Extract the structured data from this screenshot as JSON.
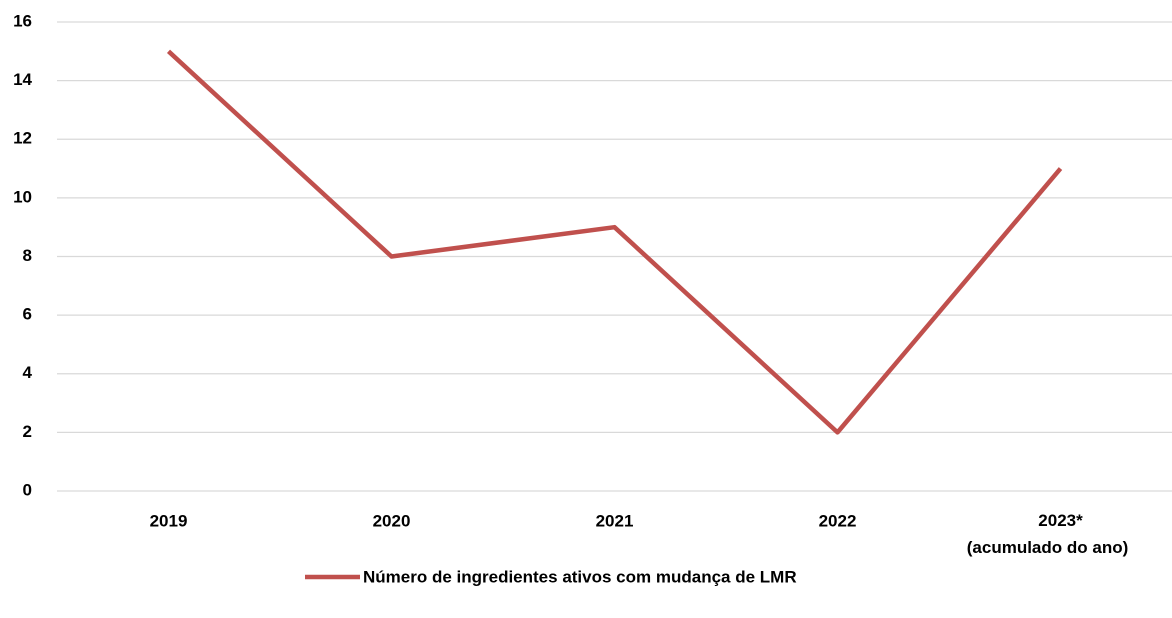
{
  "chart_data": {
    "type": "line",
    "categories": [
      "2019",
      "2020",
      "2021",
      "2022",
      "2023*\n(acumulado do ano)"
    ],
    "series": [
      {
        "name": "Número de ingredientes ativos com mudança de LMR",
        "color": "#c0504d",
        "values": [
          15,
          8,
          9,
          2,
          11
        ]
      }
    ],
    "ylim": [
      0,
      16
    ],
    "yticks": [
      0,
      2,
      4,
      6,
      8,
      10,
      12,
      14,
      16
    ],
    "grid": true,
    "legend": "bottom"
  }
}
